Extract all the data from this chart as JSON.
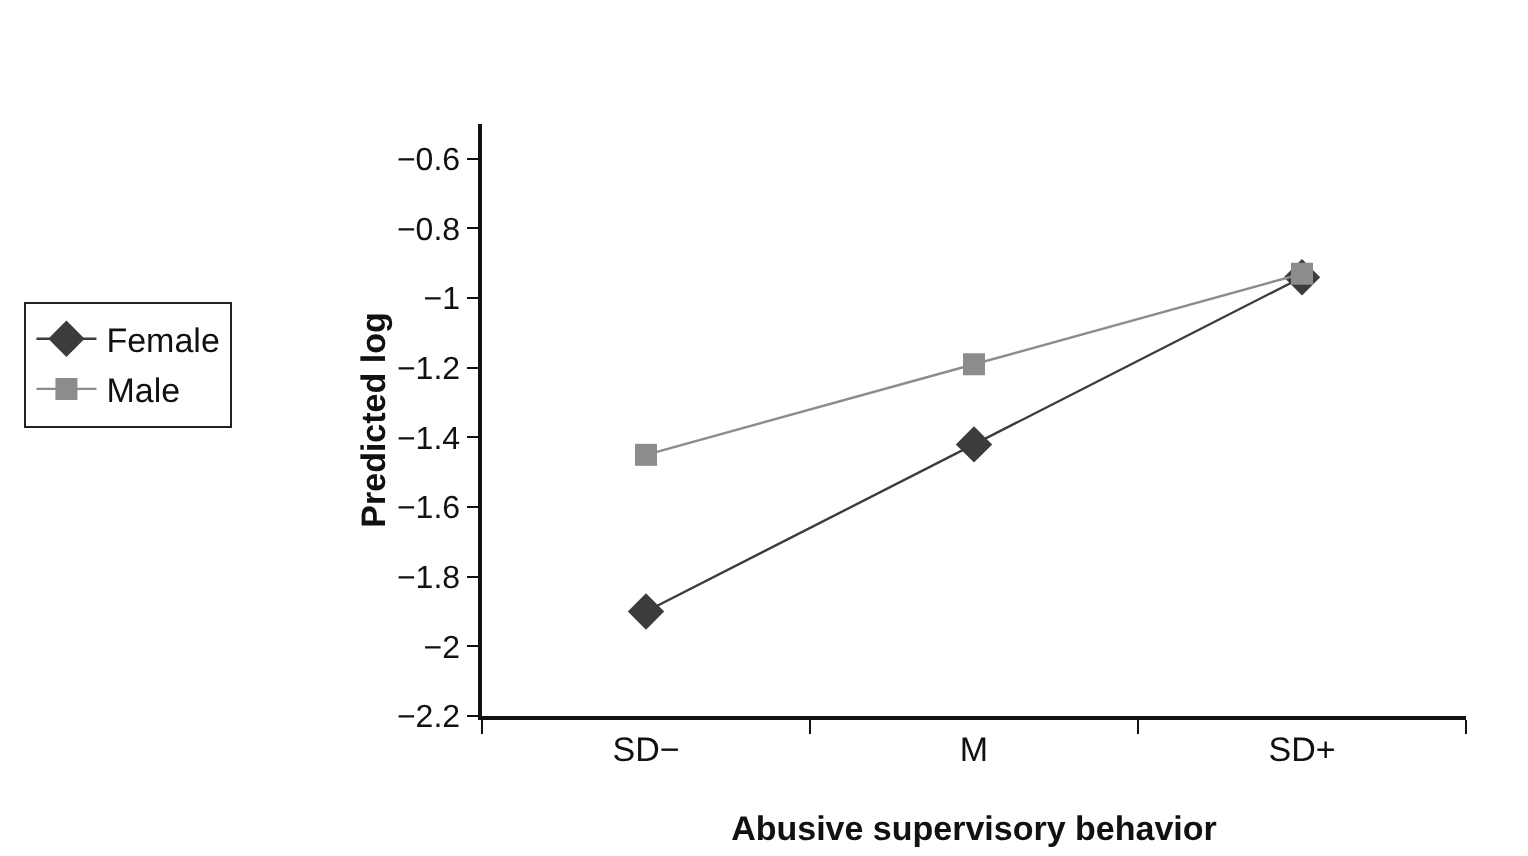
{
  "chart_data": {
    "type": "line",
    "xlabel": "Abusive supervisory behavior",
    "ylabel": "Predicted log",
    "categories": [
      "SD−",
      "M",
      "SD+"
    ],
    "series": [
      {
        "name": "Female",
        "color": "#3c3c3c",
        "marker": "diamond",
        "values": [
          -1.9,
          -1.42,
          -0.94
        ]
      },
      {
        "name": "Male",
        "color": "#8c8c8c",
        "marker": "square",
        "values": [
          -1.45,
          -1.19,
          -0.93
        ]
      }
    ],
    "ylim": [
      -2.2,
      -0.5
    ],
    "yticks": [
      -2.2,
      -2,
      -1.8,
      -1.6,
      -1.4,
      -1.2,
      -1,
      -0.8,
      -0.6
    ],
    "grid": false,
    "legend": "left",
    "line_style": "solid"
  }
}
